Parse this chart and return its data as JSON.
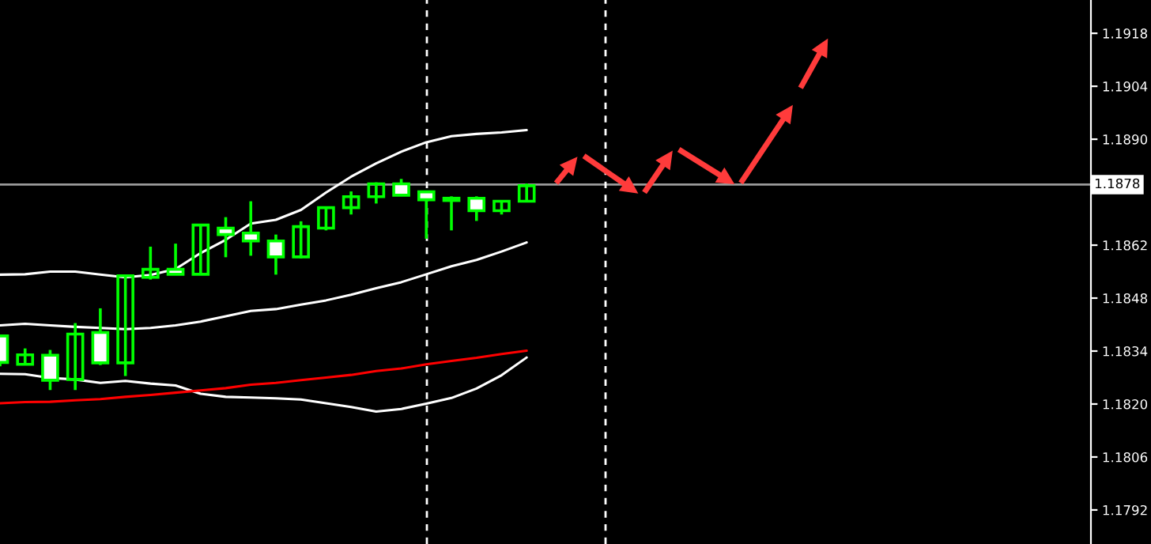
{
  "chart_data": {
    "type": "candlestick",
    "color": "#00ff00",
    "categories": [
      null,
      null,
      null,
      null,
      null,
      null,
      null,
      null,
      null,
      null,
      null,
      null,
      null,
      null,
      null,
      null,
      null,
      null,
      null,
      null,
      null,
      null,
      null,
      null,
      null,
      null,
      null,
      null,
      null,
      null,
      null,
      null,
      null,
      null,
      null,
      null,
      null,
      null,
      null,
      null,
      null,
      null,
      null,
      null
    ],
    "ohlc": [
      [
        1.1838,
        1.1838,
        1.183,
        1.1831
      ],
      [
        1.18305,
        1.18347,
        1.18305,
        1.1833
      ],
      [
        1.18329,
        1.18343,
        1.18237,
        1.18263
      ],
      [
        1.18265,
        1.18414,
        1.18237,
        1.18385
      ],
      [
        1.18389,
        1.18453,
        1.18303,
        1.18309
      ],
      [
        1.18309,
        1.18539,
        1.18274,
        1.18539
      ],
      [
        1.18535,
        1.18616,
        1.18529,
        1.18556
      ],
      [
        1.18556,
        1.18624,
        1.18543,
        1.18543
      ],
      [
        1.18543,
        1.18673,
        1.18543,
        1.18673
      ],
      [
        1.18665,
        1.18694,
        1.18588,
        1.18648
      ],
      [
        1.18652,
        1.18736,
        1.18592,
        1.18631
      ],
      [
        1.18631,
        1.18648,
        1.18542,
        1.18589
      ],
      [
        1.18589,
        1.18683,
        1.18585,
        1.18669
      ],
      [
        1.18665,
        1.18719,
        1.18659,
        1.18719
      ],
      [
        1.18719,
        1.18762,
        1.18701,
        1.18748
      ],
      [
        1.18748,
        1.18786,
        1.1873,
        1.18782
      ],
      [
        1.18782,
        1.18795,
        1.18752,
        1.18752
      ],
      [
        1.18761,
        1.18761,
        1.18637,
        1.1874
      ],
      [
        1.18738,
        1.18749,
        1.18659,
        1.18744
      ],
      [
        1.18744,
        1.18749,
        1.18684,
        1.18711
      ],
      [
        1.18711,
        1.18736,
        1.18701,
        1.18736
      ],
      [
        1.18736,
        1.18783,
        1.18736,
        1.18777
      ],
      null,
      null,
      null,
      null,
      null,
      null,
      null,
      null,
      null,
      null,
      null,
      null,
      null,
      null,
      null,
      null,
      null,
      null,
      null,
      null,
      null,
      null
    ],
    "series": [
      {
        "type": "line",
        "color": "#ffffff",
        "values": [
          1.18542,
          1.18543,
          1.1855,
          1.1855,
          1.18542,
          1.18535,
          1.18541,
          1.18557,
          1.18599,
          1.18634,
          1.18677,
          1.18687,
          1.18713,
          1.18759,
          1.18801,
          1.18836,
          1.18867,
          1.18892,
          1.18908,
          1.18914,
          1.18918,
          1.18924,
          null,
          null,
          null,
          null,
          null,
          null,
          null,
          null,
          null,
          null,
          null,
          null,
          null,
          null,
          null,
          null,
          null,
          null,
          null,
          null,
          null,
          null
        ]
      },
      {
        "type": "line",
        "color": "#ffffff",
        "values": [
          1.18408,
          1.18412,
          1.18408,
          1.18404,
          1.18401,
          1.18398,
          1.18401,
          1.18408,
          1.18418,
          1.18432,
          1.18446,
          1.18451,
          1.18463,
          1.18474,
          1.18489,
          1.18506,
          1.18522,
          1.18543,
          1.18564,
          1.18581,
          1.18603,
          1.18627,
          null,
          null,
          null,
          null,
          null,
          null,
          null,
          null,
          null,
          null,
          null,
          null,
          null,
          null,
          null,
          null,
          null,
          null,
          null,
          null,
          null,
          null
        ]
      },
      {
        "type": "line",
        "color": "#ffffff",
        "values": [
          1.1828,
          1.18279,
          1.18269,
          1.18265,
          1.18256,
          1.18261,
          1.18254,
          1.18249,
          1.18227,
          1.18219,
          1.18217,
          1.18215,
          1.18212,
          1.18202,
          1.18192,
          1.1818,
          1.18187,
          1.18201,
          1.18216,
          1.18241,
          1.18276,
          1.18323,
          null,
          null,
          null,
          null,
          null,
          null,
          null,
          null,
          null,
          null,
          null,
          null,
          null,
          null,
          null,
          null,
          null,
          null,
          null,
          null,
          null,
          null
        ]
      },
      {
        "type": "line",
        "color": "#ff0000",
        "values": [
          1.18202,
          1.18205,
          1.18206,
          1.1821,
          1.18213,
          1.18219,
          1.18224,
          1.1823,
          1.18236,
          1.18242,
          1.18251,
          1.18256,
          1.18263,
          1.1827,
          1.18277,
          1.18287,
          1.18294,
          1.18305,
          1.18314,
          1.18322,
          1.18332,
          1.18341,
          null,
          null,
          null,
          null,
          null,
          null,
          null,
          null,
          null,
          null,
          null,
          null,
          null,
          null,
          null,
          null,
          null,
          null,
          null,
          null,
          null,
          null
        ]
      }
    ],
    "ylim": [
      1.1783,
      1.19268
    ],
    "yticks": [
      1.1792,
      1.1806,
      {
        "value": 1.182,
        "label": "1.1820"
      },
      1.1834,
      1.1848,
      1.1862,
      {
        "value": 1.189,
        "label": "1.1890"
      },
      1.1904,
      1.1918
    ],
    "ref_lines": [
      {
        "axis": "y",
        "value": 1.1878,
        "label": "1.1878",
        "color": "#9a9a9a"
      }
    ],
    "tick_labels": "y"
  }
}
